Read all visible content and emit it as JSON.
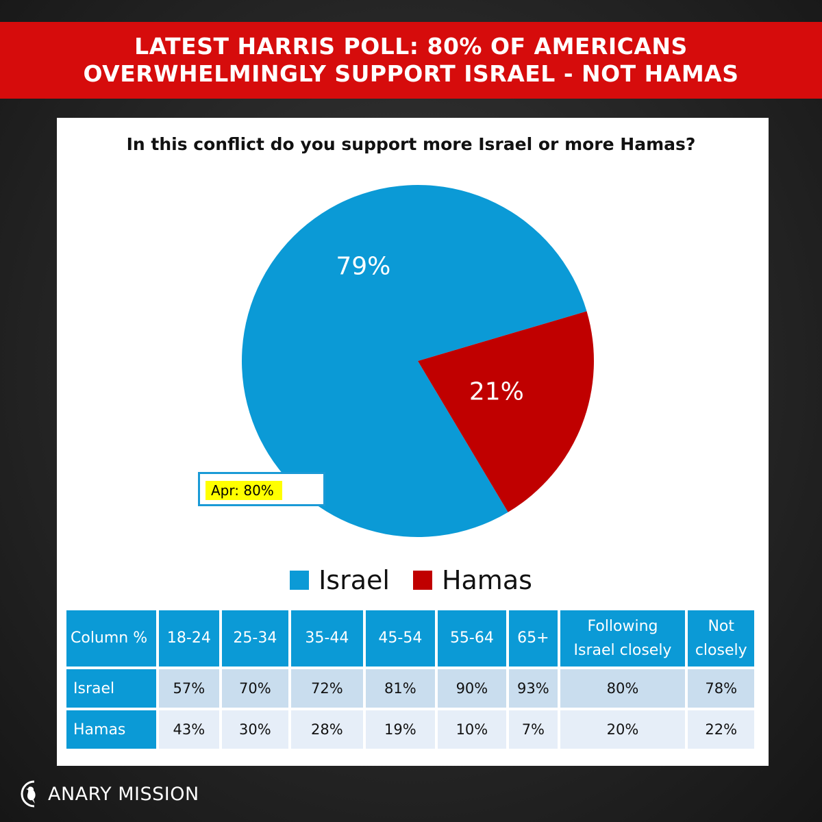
{
  "banner": {
    "line1": "LATEST HARRIS POLL: 80% OF AMERICANS",
    "line2": "OVERWHELMINGLY SUPPORT ISRAEL - NOT HAMAS"
  },
  "colors": {
    "banner_red": "#d60c0c",
    "israel_blue": "#0b9ad6",
    "hamas_red": "#c00000",
    "callout_yellow": "#ffff00"
  },
  "chart_data": {
    "type": "pie",
    "title": "In this conflict do you support more Israel or more Hamas?",
    "slices": [
      {
        "name": "Israel",
        "value": 79,
        "label": "79%",
        "color": "#0b9ad6"
      },
      {
        "name": "Hamas",
        "value": 21,
        "label": "21%",
        "color": "#c00000"
      }
    ],
    "annotation": "Apr: 80%",
    "legend_position": "bottom"
  },
  "table": {
    "corner": "Column %",
    "headers": [
      "18-24",
      "25-34",
      "35-44",
      "45-54",
      "55-64",
      "65+",
      {
        "line1": "Following",
        "line2": "Israel closely"
      },
      {
        "line1": "Not",
        "line2": "closely"
      }
    ],
    "rows": [
      {
        "label": "Israel",
        "values": [
          "57%",
          "70%",
          "72%",
          "81%",
          "90%",
          "93%",
          "80%",
          "78%"
        ]
      },
      {
        "label": "Hamas",
        "values": [
          "43%",
          "30%",
          "28%",
          "19%",
          "10%",
          "7%",
          "20%",
          "22%"
        ]
      }
    ]
  },
  "footer": {
    "logo_text": "ANARY MISSION",
    "logo_icon": "canary-bird-icon"
  }
}
